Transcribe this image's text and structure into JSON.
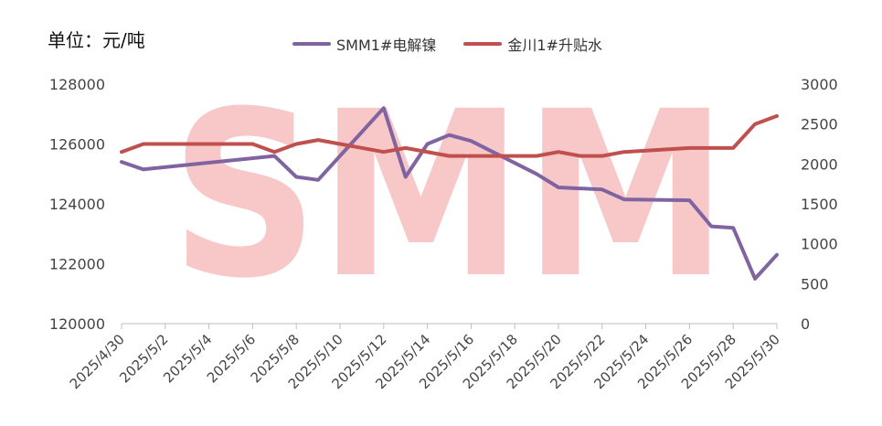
{
  "chart_data": {
    "type": "line",
    "unit_label": "单位：元/吨",
    "watermark": "SMM",
    "x": [
      "2025/4/30",
      "2025/5/1",
      "2025/5/2",
      "2025/5/3",
      "2025/5/4",
      "2025/5/5",
      "2025/5/6",
      "2025/5/7",
      "2025/5/8",
      "2025/5/9",
      "2025/5/10",
      "2025/5/11",
      "2025/5/12",
      "2025/5/13",
      "2025/5/14",
      "2025/5/15",
      "2025/5/16",
      "2025/5/17",
      "2025/5/18",
      "2025/5/19",
      "2025/5/20",
      "2025/5/21",
      "2025/5/22",
      "2025/5/23",
      "2025/5/24",
      "2025/5/25",
      "2025/5/26",
      "2025/5/27",
      "2025/5/28",
      "2025/5/29",
      "2025/5/30"
    ],
    "x_tick_labels": [
      "2025/4/30",
      "2025/5/2",
      "2025/5/4",
      "2025/5/6",
      "2025/5/8",
      "2025/5/10",
      "2025/5/12",
      "2025/5/14",
      "2025/5/16",
      "2025/5/18",
      "2025/5/20",
      "2025/5/22",
      "2025/5/24",
      "2025/5/26",
      "2025/5/28",
      "2025/5/30"
    ],
    "y_left": {
      "ticks": [
        120000,
        122000,
        124000,
        126000,
        128000
      ],
      "ylim": [
        120000,
        128000
      ]
    },
    "y_right": {
      "ticks": [
        0,
        500,
        1000,
        1500,
        2000,
        2500,
        3000
      ],
      "ylim": [
        0,
        3000
      ]
    },
    "series": [
      {
        "name": "SMM1#电解镍",
        "axis": "left",
        "color": "#8064A2",
        "points": [
          [
            "2025/4/30",
            125400
          ],
          [
            "2025/5/1",
            125150
          ],
          [
            "2025/5/7",
            125600
          ],
          [
            "2025/5/8",
            124900
          ],
          [
            "2025/5/9",
            124800
          ],
          [
            "2025/5/12",
            127200
          ],
          [
            "2025/5/13",
            124900
          ],
          [
            "2025/5/14",
            126000
          ],
          [
            "2025/5/15",
            126300
          ],
          [
            "2025/5/16",
            126100
          ],
          [
            "2025/5/19",
            125000
          ],
          [
            "2025/5/20",
            124550
          ],
          [
            "2025/5/22",
            124480
          ],
          [
            "2025/5/23",
            124150
          ],
          [
            "2025/5/26",
            124120
          ],
          [
            "2025/5/27",
            123250
          ],
          [
            "2025/5/28",
            123200
          ],
          [
            "2025/5/29",
            121500
          ],
          [
            "2025/5/30",
            122300
          ]
        ]
      },
      {
        "name": "金川1#升贴水",
        "axis": "right",
        "color": "#C0504D",
        "points": [
          [
            "2025/4/30",
            2150
          ],
          [
            "2025/5/1",
            2250
          ],
          [
            "2025/5/6",
            2250
          ],
          [
            "2025/5/7",
            2150
          ],
          [
            "2025/5/8",
            2250
          ],
          [
            "2025/5/9",
            2300
          ],
          [
            "2025/5/12",
            2150
          ],
          [
            "2025/5/13",
            2200
          ],
          [
            "2025/5/15",
            2100
          ],
          [
            "2025/5/19",
            2100
          ],
          [
            "2025/5/20",
            2150
          ],
          [
            "2025/5/21",
            2100
          ],
          [
            "2025/5/22",
            2100
          ],
          [
            "2025/5/23",
            2150
          ],
          [
            "2025/5/26",
            2200
          ],
          [
            "2025/5/28",
            2200
          ],
          [
            "2025/5/29",
            2500
          ],
          [
            "2025/5/30",
            2600
          ]
        ]
      }
    ]
  }
}
